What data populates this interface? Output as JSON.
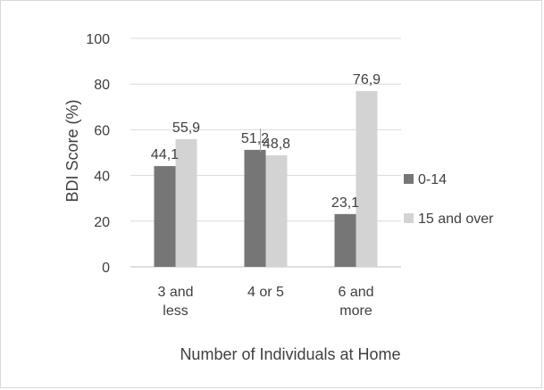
{
  "chart_data": {
    "type": "bar",
    "title": "",
    "xlabel": "Number of Individuals at Home",
    "ylabel": "BDI Score (%)",
    "ylim": [
      0,
      100
    ],
    "yticks": [
      0,
      20,
      40,
      60,
      80,
      100
    ],
    "grid": true,
    "legend_position": "right",
    "categories": [
      [
        "3 and",
        "less"
      ],
      [
        "4 or 5"
      ],
      [
        "6 and",
        "more"
      ]
    ],
    "series": [
      {
        "name": "0-14",
        "values": [
          44.1,
          51.2,
          23.1
        ],
        "labels": [
          "44,1",
          "51,2",
          "23,1"
        ],
        "color": "#767676"
      },
      {
        "name": "15 and over",
        "values": [
          55.9,
          48.8,
          76.9
        ],
        "labels": [
          "55,9",
          "48,8",
          "76,9"
        ],
        "color": "#d3d3d3"
      }
    ]
  }
}
